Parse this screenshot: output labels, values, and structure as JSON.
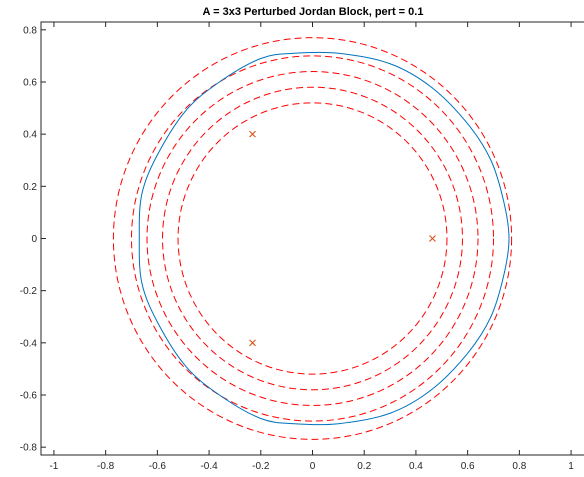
{
  "chart_data": {
    "type": "line",
    "title": "A = 3x3 Perturbed Jordan Block, pert = 0.1",
    "xlabel": "",
    "ylabel": "",
    "xlim": [
      -1.05,
      1.05
    ],
    "ylim": [
      -0.83,
      0.83
    ],
    "xticks": [
      -1,
      -0.8,
      -0.6,
      -0.4,
      -0.2,
      0,
      0.2,
      0.4,
      0.6,
      0.8,
      1
    ],
    "xtick_labels": [
      "-1",
      "-0.8",
      "-0.6",
      "-0.4",
      "-0.2",
      "0",
      "0.2",
      "0.4",
      "0.6",
      "0.8",
      "1"
    ],
    "yticks": [
      -0.8,
      -0.6,
      -0.4,
      -0.2,
      0,
      0.2,
      0.4,
      0.6,
      0.8
    ],
    "ytick_labels": [
      "-0.8",
      "-0.6",
      "-0.4",
      "-0.2",
      "0",
      "0.2",
      "0.4",
      "0.6",
      "0.8"
    ],
    "grid": false,
    "circles": {
      "center": [
        0,
        0
      ],
      "radii": [
        0.52,
        0.58,
        0.64,
        0.7,
        0.77
      ],
      "color": "#ff0000",
      "style": "dashed"
    },
    "boundary_curve": {
      "color": "#0072bd",
      "points": [
        [
          0.76,
          0.0
        ],
        [
          0.74,
          0.14
        ],
        [
          0.69,
          0.3
        ],
        [
          0.6,
          0.44
        ],
        [
          0.46,
          0.58
        ],
        [
          0.3,
          0.67
        ],
        [
          0.1,
          0.71
        ],
        [
          -0.07,
          0.71
        ],
        [
          -0.2,
          0.69
        ],
        [
          -0.36,
          0.6
        ],
        [
          -0.49,
          0.49
        ],
        [
          -0.6,
          0.32
        ],
        [
          -0.66,
          0.17
        ],
        [
          -0.67,
          0.0
        ],
        [
          -0.66,
          -0.17
        ],
        [
          -0.6,
          -0.32
        ],
        [
          -0.49,
          -0.49
        ],
        [
          -0.36,
          -0.6
        ],
        [
          -0.2,
          -0.69
        ],
        [
          -0.07,
          -0.71
        ],
        [
          0.1,
          -0.71
        ],
        [
          0.3,
          -0.67
        ],
        [
          0.46,
          -0.58
        ],
        [
          0.6,
          -0.44
        ],
        [
          0.69,
          -0.3
        ],
        [
          0.74,
          -0.14
        ],
        [
          0.76,
          0.0
        ]
      ]
    },
    "eigenvalues": {
      "color": "#d95319",
      "marker": "x",
      "points": [
        [
          0.464,
          0.0
        ],
        [
          -0.232,
          0.4
        ],
        [
          -0.232,
          -0.4
        ]
      ]
    }
  }
}
